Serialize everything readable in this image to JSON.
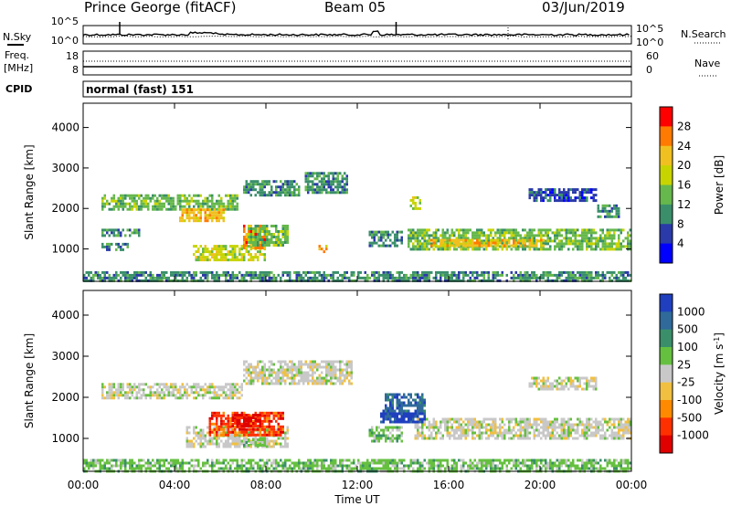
{
  "header": {
    "station": "Prince George (fitACF)",
    "beam": "Beam 05",
    "date": "03/Jun/2019"
  },
  "strip_labels": {
    "nsky": "N.Sky",
    "nsearch": "N.Search",
    "freq": "Freq.",
    "mhz": "[MHz]",
    "nave": "Nave",
    "cpid": "CPID",
    "cpid_text": "normal (fast) 151"
  },
  "chart_data": [
    {
      "type": "line",
      "panel": "noise",
      "left_ticks": [
        "10^5",
        "10^0"
      ],
      "right_ticks": [
        "10^5",
        "10^0"
      ],
      "left_label": "N.Sky",
      "right_label": "N.Search",
      "series": [
        {
          "name": "N.Sky",
          "style": "solid"
        },
        {
          "name": "N.Search",
          "style": "dotted"
        }
      ]
    },
    {
      "type": "line",
      "panel": "frequency / nave",
      "left_ticks": [
        "18",
        "8"
      ],
      "right_ticks": [
        "60",
        "0"
      ],
      "left_ylim": [
        8,
        18
      ],
      "right_ylim": [
        0,
        60
      ],
      "series": [
        {
          "name": "Freq. [MHz]",
          "style": "solid"
        },
        {
          "name": "Nave",
          "style": "dotted"
        }
      ]
    },
    {
      "type": "heatmap",
      "panel": "power",
      "x": {
        "label": "Time UT",
        "range_hours": [
          0,
          24
        ],
        "ticks": [
          "00:00",
          "04:00",
          "08:00",
          "12:00",
          "16:00",
          "20:00",
          "00:00"
        ]
      },
      "y": {
        "label": "Slant Range [km]",
        "range": [
          200,
          4600
        ],
        "ticks": [
          1000,
          2000,
          3000,
          4000
        ]
      },
      "colorbar": {
        "label": "Power [dB]",
        "ticks": [
          "28",
          "24",
          "20",
          "16",
          "12",
          "8",
          "4"
        ],
        "colors": [
          "#ff0000",
          "#ff7a00",
          "#f0c020",
          "#c8d400",
          "#66b84c",
          "#3a8f6a",
          "#2a3aa8",
          "#0000ff"
        ]
      },
      "regions": [
        {
          "t": [
            0.8,
            6.8
          ],
          "r": [
            1950,
            2350
          ],
          "level": 12
        },
        {
          "t": [
            4.2,
            6.2
          ],
          "r": [
            1700,
            2000
          ],
          "level": 20
        },
        {
          "t": [
            0.8,
            2.0
          ],
          "r": [
            950,
            1150
          ],
          "level": 8
        },
        {
          "t": [
            0.8,
            2.5
          ],
          "r": [
            1300,
            1500
          ],
          "level": 8
        },
        {
          "t": [
            4.8,
            8.0
          ],
          "r": [
            700,
            1100
          ],
          "level": 16
        },
        {
          "t": [
            7.0,
            8.0
          ],
          "r": [
            1000,
            1600
          ],
          "level": 24
        },
        {
          "t": [
            7.2,
            9.0
          ],
          "r": [
            1100,
            1600
          ],
          "level": 12
        },
        {
          "t": [
            10.3,
            10.7
          ],
          "r": [
            950,
            1100
          ],
          "level": 20
        },
        {
          "t": [
            7.0,
            9.5
          ],
          "r": [
            2300,
            2700
          ],
          "level": 8
        },
        {
          "t": [
            9.7,
            11.6
          ],
          "r": [
            2400,
            2900
          ],
          "level": 8
        },
        {
          "t": [
            14.2,
            24.0
          ],
          "r": [
            1000,
            1500
          ],
          "level": 12
        },
        {
          "t": [
            15.2,
            20.2
          ],
          "r": [
            1050,
            1250
          ],
          "level": 20
        },
        {
          "t": [
            12.5,
            14.0
          ],
          "r": [
            1100,
            1450
          ],
          "level": 8
        },
        {
          "t": [
            14.3,
            14.8
          ],
          "r": [
            2000,
            2300
          ],
          "level": 16
        },
        {
          "t": [
            19.5,
            22.5
          ],
          "r": [
            2200,
            2500
          ],
          "level": 4
        },
        {
          "t": [
            22.5,
            23.5
          ],
          "r": [
            1800,
            2100
          ],
          "level": 8
        },
        {
          "t": [
            0.0,
            24.0
          ],
          "r": [
            200,
            450
          ],
          "level": 8
        }
      ]
    },
    {
      "type": "heatmap",
      "panel": "velocity",
      "x": {
        "label": "Time UT",
        "range_hours": [
          0,
          24
        ],
        "ticks": [
          "00:00",
          "04:00",
          "08:00",
          "12:00",
          "16:00",
          "20:00",
          "00:00"
        ]
      },
      "y": {
        "label": "Slant Range [km]",
        "range": [
          200,
          4600
        ],
        "ticks": [
          1000,
          2000,
          3000,
          4000
        ]
      },
      "colorbar": {
        "label": "Velocity [m s^-1]",
        "ticks": [
          "1000",
          "500",
          "100",
          "25",
          "-25",
          "-100",
          "-500",
          "-1000"
        ],
        "colors": [
          "#1f3fbf",
          "#2f6a9a",
          "#3a8f6a",
          "#66c040",
          "#c8c8c8",
          "#f2c040",
          "#ff8a00",
          "#ff3000",
          "#e00000"
        ]
      },
      "regions": [
        {
          "t": [
            0.8,
            7.0
          ],
          "r": [
            1950,
            2350
          ],
          "v": 0
        },
        {
          "t": [
            7.0,
            11.8
          ],
          "r": [
            2300,
            2900
          ],
          "v": 0
        },
        {
          "t": [
            4.5,
            9.0
          ],
          "r": [
            800,
            1300
          ],
          "v": 0
        },
        {
          "t": [
            5.5,
            8.8
          ],
          "r": [
            1100,
            1650
          ],
          "v": -500
        },
        {
          "t": [
            6.5,
            7.8
          ],
          "r": [
            1300,
            1600
          ],
          "v": -1000
        },
        {
          "t": [
            7.0,
            8.0
          ],
          "r": [
            850,
            1000
          ],
          "v": 100
        },
        {
          "t": [
            14.5,
            24.0
          ],
          "r": [
            1000,
            1500
          ],
          "v": 0
        },
        {
          "t": [
            13.0,
            15.0
          ],
          "r": [
            1400,
            1700
          ],
          "v": 1000
        },
        {
          "t": [
            13.2,
            15.0
          ],
          "r": [
            1650,
            2100
          ],
          "v": 500
        },
        {
          "t": [
            12.5,
            14.0
          ],
          "r": [
            950,
            1300
          ],
          "v": 100
        },
        {
          "t": [
            0.0,
            24.0
          ],
          "r": [
            200,
            500
          ],
          "v": 100
        },
        {
          "t": [
            19.5,
            22.5
          ],
          "r": [
            2200,
            2500
          ],
          "v": 0
        }
      ]
    }
  ]
}
